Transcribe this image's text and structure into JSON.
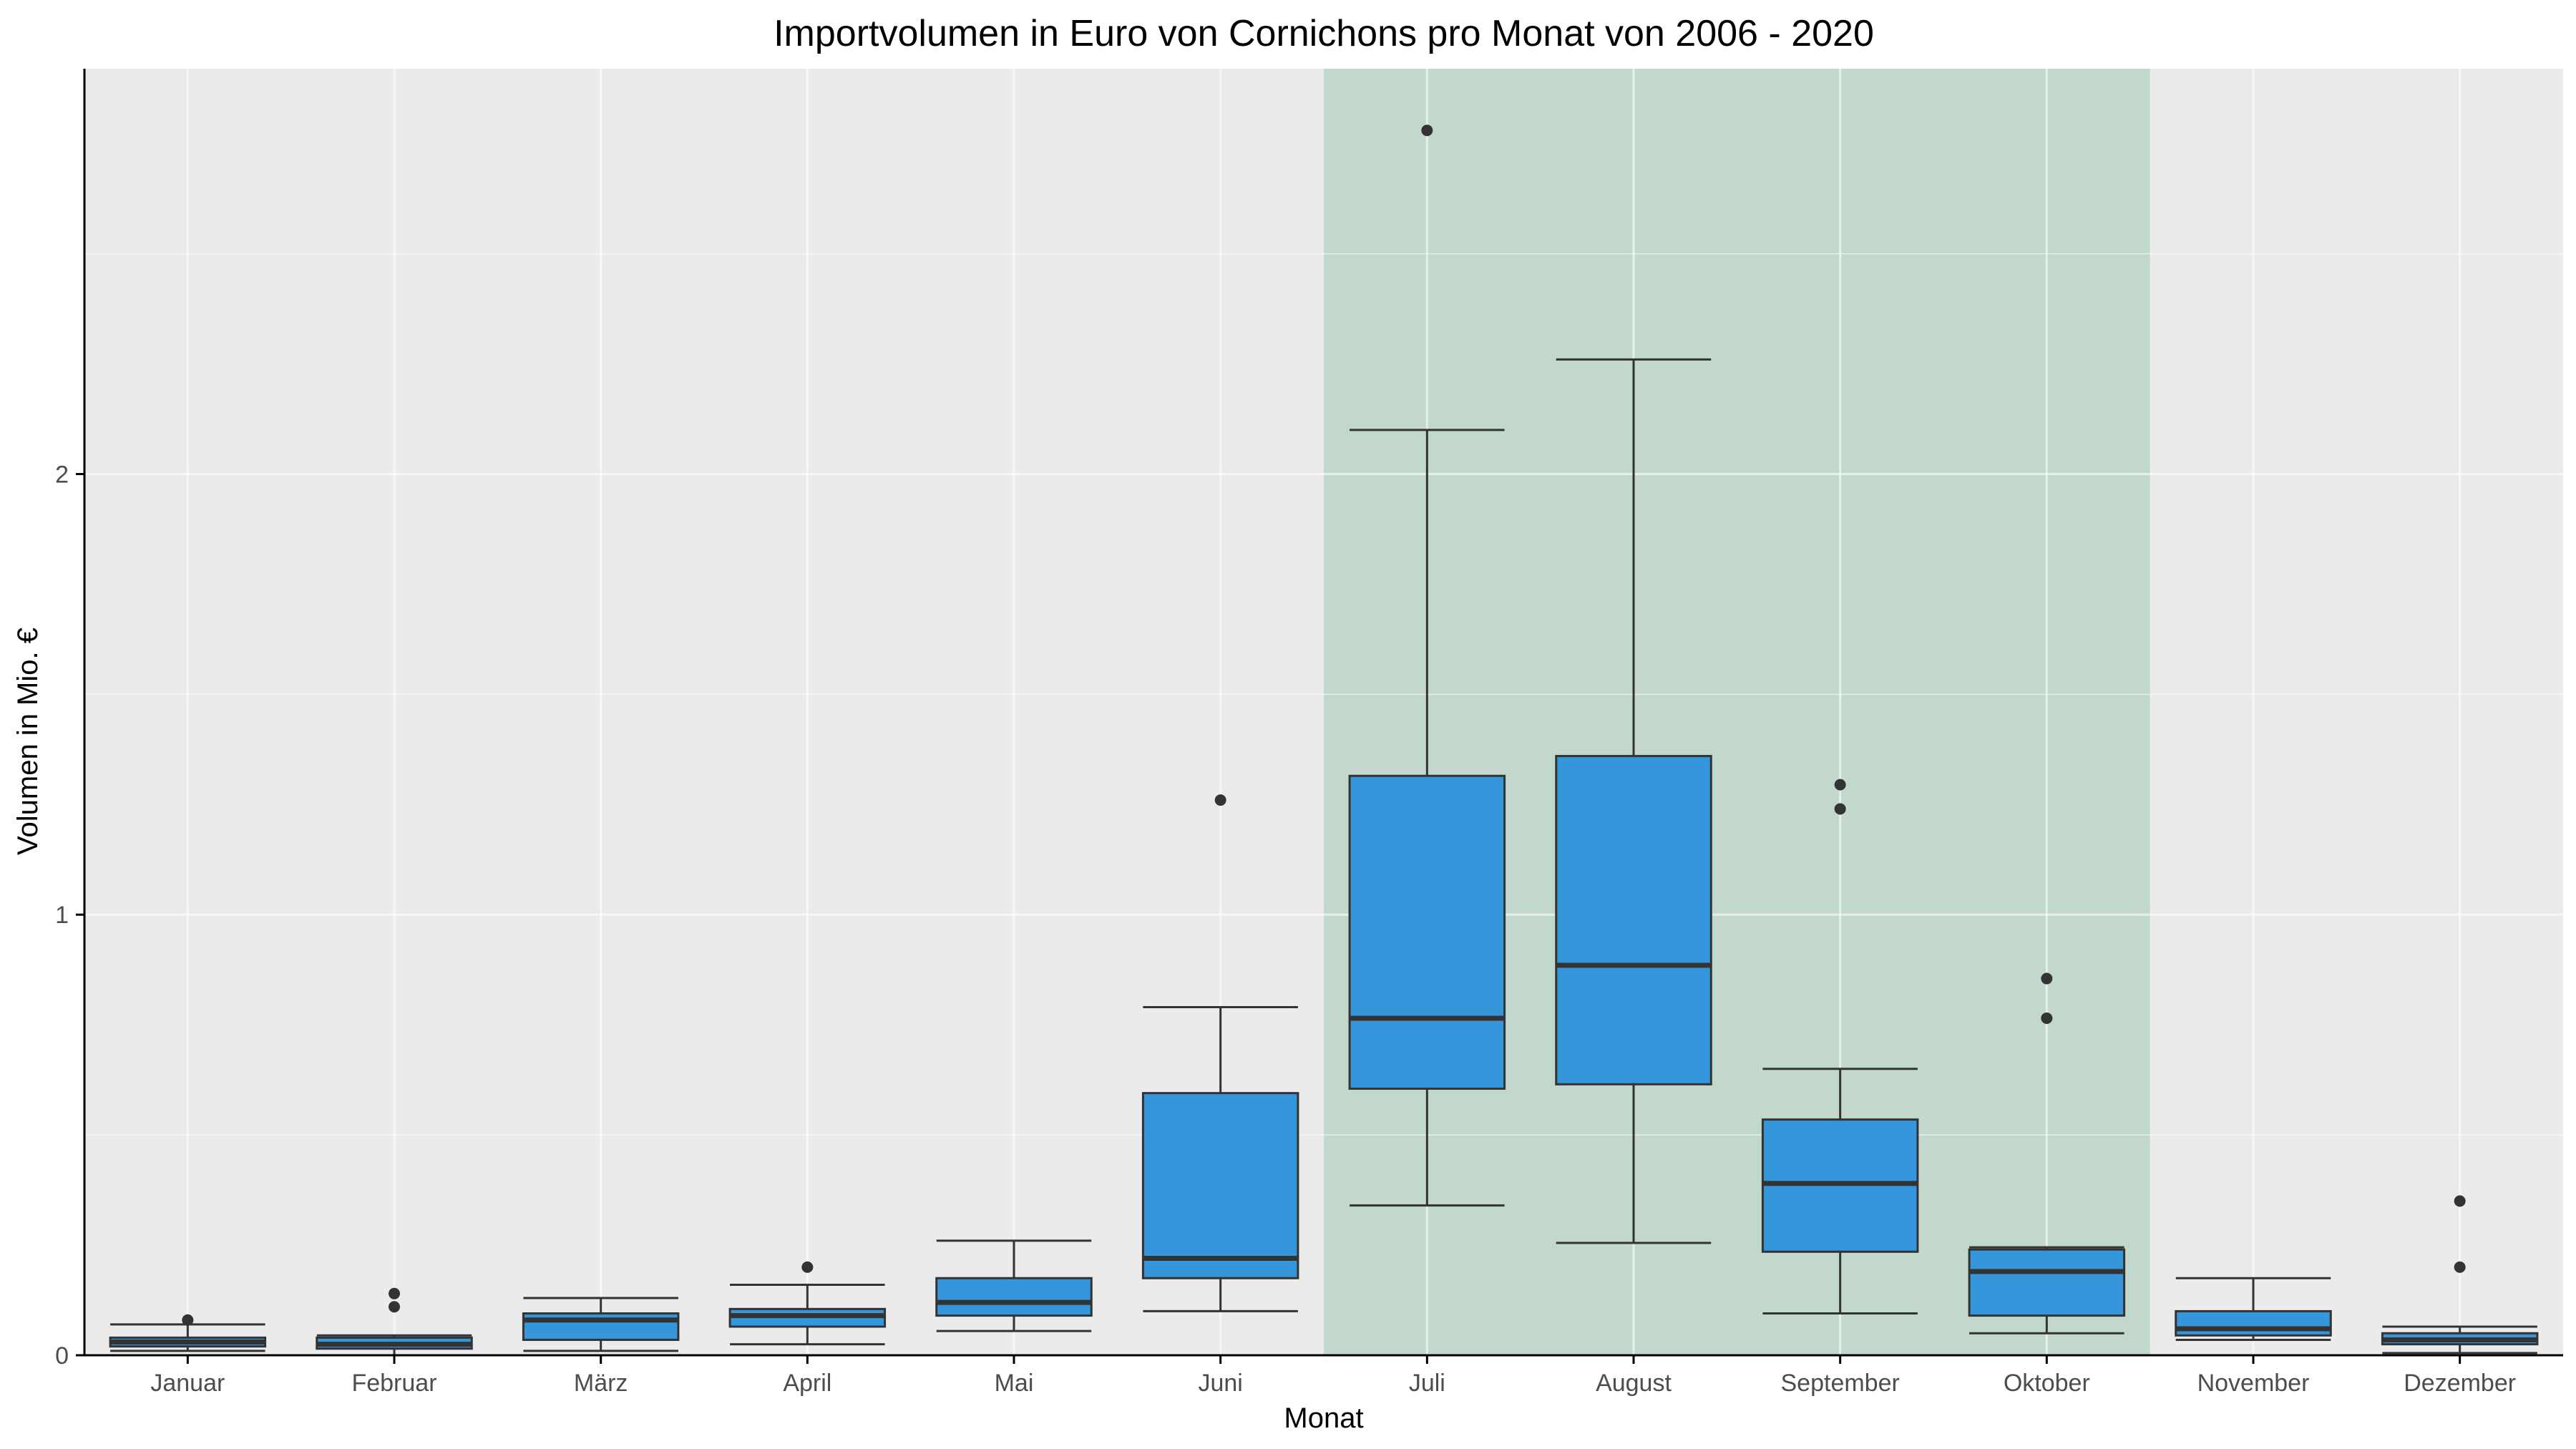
{
  "chart_data": {
    "type": "box",
    "title": "Importvolumen in Euro von Cornichons pro Monat von 2006 - 2020",
    "xlabel": "Monat",
    "ylabel": "Volumen in Mio. €",
    "ylim": [
      0,
      2.92
    ],
    "y_ticks": [
      0,
      1,
      2
    ],
    "y_tick_labels": [
      "0",
      "1",
      "2"
    ],
    "grid": true,
    "legend": "none",
    "colors": {
      "panel": "#ebebeb",
      "grid": "#ffffff",
      "box_fill": "#3596db",
      "box_stroke": "#333333",
      "highlight": "#c2d8cd",
      "axis": "#000000"
    },
    "highlight_range": {
      "from": "Juli",
      "to": "Oktober"
    },
    "categories": [
      "Januar",
      "Februar",
      "März",
      "April",
      "Mai",
      "Juni",
      "Juli",
      "August",
      "September",
      "Oktober",
      "November",
      "Dezember"
    ],
    "boxes": [
      {
        "category": "Januar",
        "whisker_low": 0.01,
        "q1": 0.02,
        "median": 0.03,
        "q3": 0.04,
        "whisker_high": 0.07,
        "outliers": [
          0.08
        ]
      },
      {
        "category": "Februar",
        "whisker_low": 0.0,
        "q1": 0.015,
        "median": 0.025,
        "q3": 0.04,
        "whisker_high": 0.045,
        "outliers": [
          0.11,
          0.14
        ]
      },
      {
        "category": "März",
        "whisker_low": 0.01,
        "q1": 0.035,
        "median": 0.08,
        "q3": 0.095,
        "whisker_high": 0.13,
        "outliers": []
      },
      {
        "category": "April",
        "whisker_low": 0.025,
        "q1": 0.065,
        "median": 0.09,
        "q3": 0.105,
        "whisker_high": 0.16,
        "outliers": [
          0.2
        ]
      },
      {
        "category": "Mai",
        "whisker_low": 0.055,
        "q1": 0.09,
        "median": 0.12,
        "q3": 0.175,
        "whisker_high": 0.26,
        "outliers": []
      },
      {
        "category": "Juni",
        "whisker_low": 0.1,
        "q1": 0.175,
        "median": 0.22,
        "q3": 0.595,
        "whisker_high": 0.79,
        "outliers": [
          1.26
        ]
      },
      {
        "category": "Juli",
        "whisker_low": 0.34,
        "q1": 0.605,
        "median": 0.765,
        "q3": 1.315,
        "whisker_high": 2.1,
        "outliers": [
          2.78
        ]
      },
      {
        "category": "August",
        "whisker_low": 0.255,
        "q1": 0.615,
        "median": 0.885,
        "q3": 1.36,
        "whisker_high": 2.26,
        "outliers": []
      },
      {
        "category": "September",
        "whisker_low": 0.095,
        "q1": 0.235,
        "median": 0.39,
        "q3": 0.535,
        "whisker_high": 0.65,
        "outliers": [
          1.24,
          1.295
        ]
      },
      {
        "category": "Oktober",
        "whisker_low": 0.05,
        "q1": 0.09,
        "median": 0.19,
        "q3": 0.24,
        "whisker_high": 0.245,
        "outliers": [
          0.765,
          0.855
        ]
      },
      {
        "category": "November",
        "whisker_low": 0.035,
        "q1": 0.045,
        "median": 0.06,
        "q3": 0.1,
        "whisker_high": 0.175,
        "outliers": []
      },
      {
        "category": "Dezember",
        "whisker_low": 0.005,
        "q1": 0.025,
        "median": 0.035,
        "q3": 0.05,
        "whisker_high": 0.065,
        "outliers": [
          0.2,
          0.35
        ]
      }
    ]
  }
}
